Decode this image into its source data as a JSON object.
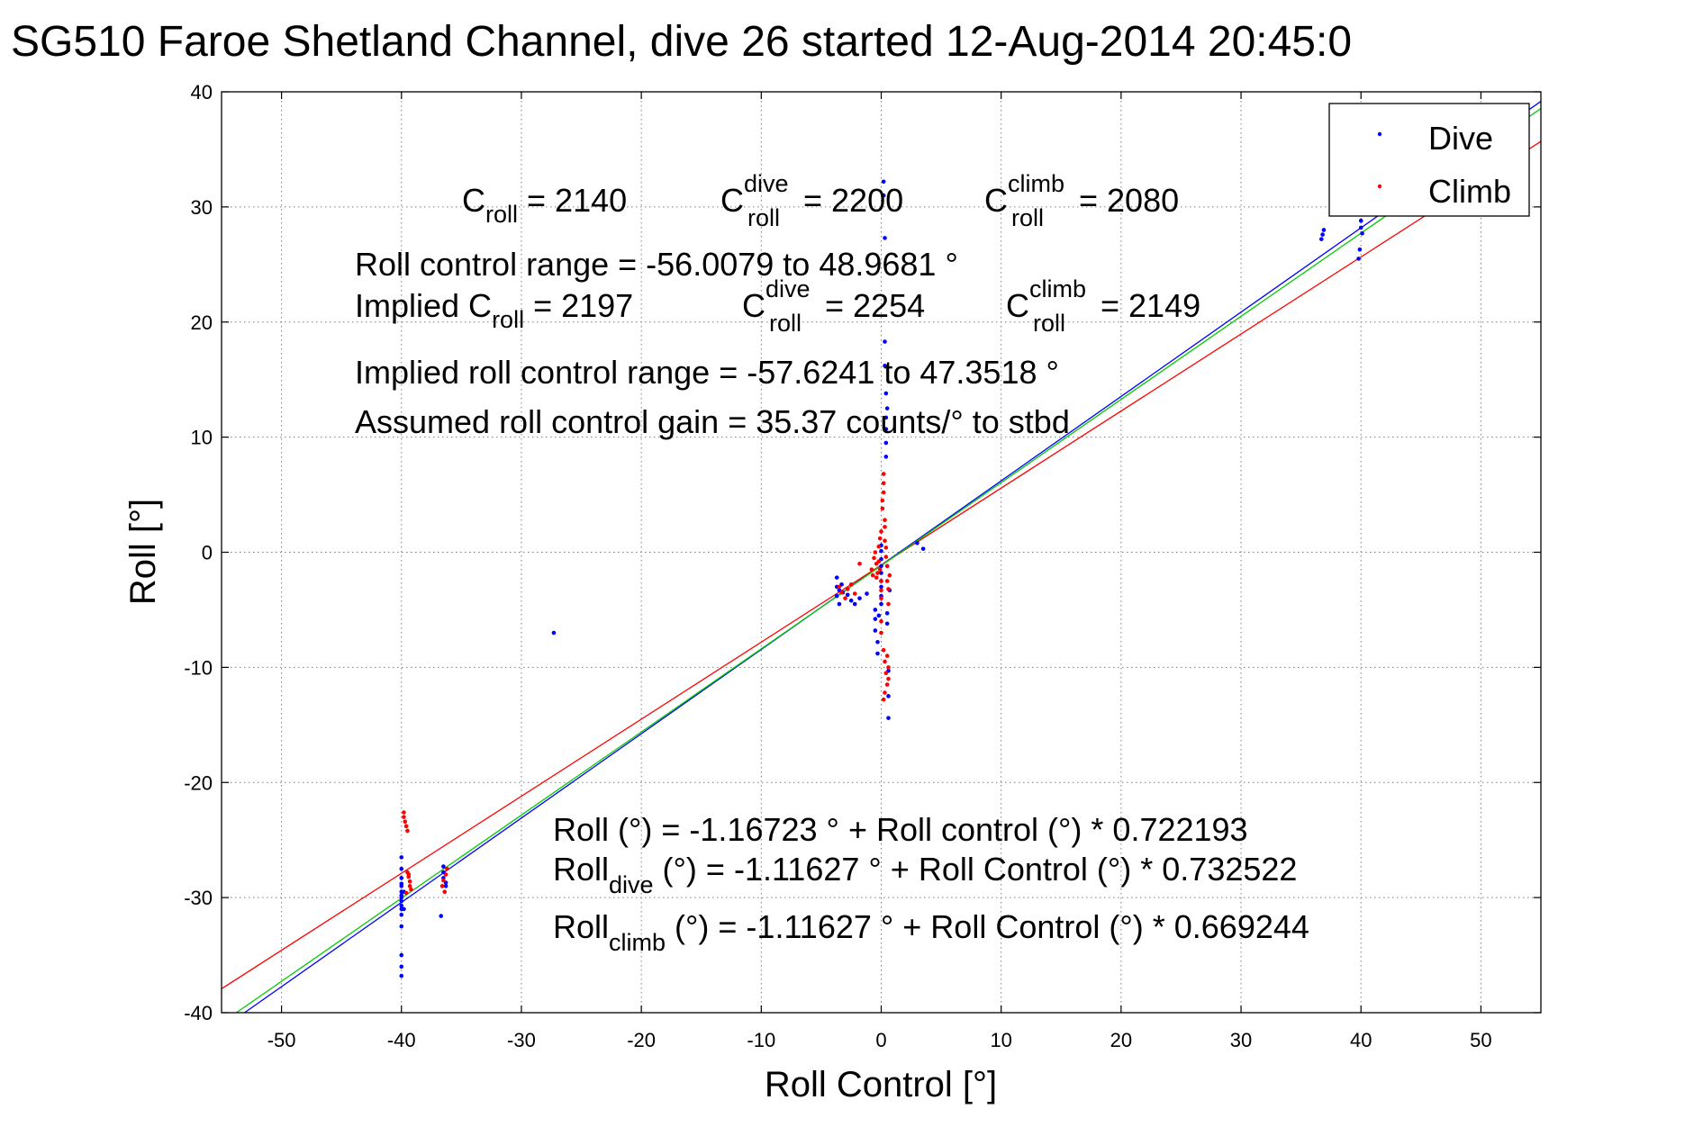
{
  "chart_data": {
    "type": "scatter",
    "title": "SG510 Faroe Shetland Channel, dive 26 started 12-Aug-2014 20:45:0",
    "xlabel": "Roll Control [°]",
    "ylabel": "Roll [°]",
    "xlim": [
      -55,
      55
    ],
    "ylim": [
      -40,
      40
    ],
    "xticks": [
      -50,
      -40,
      -30,
      -20,
      -10,
      0,
      10,
      20,
      30,
      40,
      50
    ],
    "yticks": [
      -40,
      -30,
      -20,
      -10,
      0,
      10,
      20,
      30,
      40
    ],
    "grid": true,
    "legend": {
      "placement": "top-right",
      "entries": [
        "Dive",
        "Climb"
      ]
    },
    "colors": {
      "dive": "#0000ff",
      "climb": "#ff0000",
      "fit_all": "#00cc00"
    },
    "series": [
      {
        "name": "Dive",
        "x": [
          -40,
          -40,
          -40,
          -40,
          -40,
          -40,
          -40,
          -40,
          -40,
          -40,
          -40,
          -40,
          -40,
          -40,
          -40,
          -40,
          -39.8,
          -39.8,
          -36.5,
          -36.5,
          -36.5,
          -36.3,
          -36.3,
          -36.7,
          -27.3,
          -3.7,
          -3.7,
          -3.7,
          -3.5,
          -3.5,
          -3.3,
          -3.2,
          -2.8,
          -2.5,
          -2.2,
          -1.8,
          -1.2,
          -0.5,
          -0.5,
          -0.5,
          -0.3,
          -0.3,
          -0.2,
          0,
          0,
          0,
          0,
          0,
          0,
          0,
          0,
          0,
          0.2,
          0.2,
          0.3,
          0.3,
          0.3,
          0.4,
          0.4,
          0.4,
          0.4,
          0.4,
          0.5,
          0.5,
          0.5,
          0.6,
          0.6,
          0.6,
          0.7,
          3.0,
          3.5,
          36.7,
          36.8,
          36.9,
          39.8,
          39.9,
          40,
          40,
          40.1,
          40.1,
          40.2,
          40.2
        ],
        "y": [
          -26.5,
          -27.5,
          -28.3,
          -29.0,
          -29.5,
          -30.0,
          -30.3,
          -30.7,
          -31.0,
          -31.5,
          -32.5,
          -35.0,
          -36.0,
          -36.8,
          -29.8,
          -28.8,
          -31.0,
          -29.5,
          -27.3,
          -27.8,
          -28.3,
          -28.7,
          -29.0,
          -31.6,
          -7.0,
          -2.2,
          -3.0,
          -3.8,
          -4.5,
          -3.3,
          -2.8,
          -3.5,
          -3.7,
          -4.2,
          -4.5,
          -4.0,
          -3.6,
          -5.0,
          -5.8,
          -6.8,
          -7.8,
          -8.8,
          -5.5,
          -2.5,
          -1.8,
          -1.2,
          -0.6,
          0.1,
          0.6,
          -3.0,
          -3.8,
          -4.5,
          32.2,
          31.0,
          27.3,
          18.3,
          16.2,
          13.8,
          11.7,
          10.7,
          9.5,
          8.3,
          12.5,
          -5.3,
          -6.2,
          -10.3,
          -12.5,
          -14.4,
          -3.3,
          0.8,
          0.3,
          27.2,
          27.6,
          28.0,
          25.5,
          26.3,
          28.2,
          28.8,
          27.7,
          29.5,
          30.1,
          31.0
        ]
      },
      {
        "name": "Climb",
        "x": [
          -39.8,
          -39.8,
          -39.7,
          -39.6,
          -39.5,
          -39.5,
          -39.4,
          -39.3,
          -39.3,
          -39.2,
          -39.6,
          -39.4,
          -36.2,
          -36.3,
          -36.5,
          -36.6,
          -36.4,
          -3.5,
          -3.3,
          -3.0,
          -2.8,
          -2.5,
          -2.2,
          -1.8,
          -0.8,
          -0.7,
          -0.6,
          -0.5,
          -0.4,
          -0.4,
          -0.3,
          -0.2,
          -0.2,
          -0.1,
          -0.1,
          0,
          0,
          0,
          0,
          0,
          0,
          0.1,
          0.1,
          0.2,
          0.2,
          0.2,
          0.3,
          0.3,
          0.3,
          0.4,
          0.4,
          0.5,
          0.5,
          0.6,
          0.6,
          0.7,
          0.2,
          0.3,
          0.4,
          0.5,
          0.3,
          0.2,
          0.5,
          0.6,
          0.6
        ],
        "y": [
          -22.6,
          -23.0,
          -23.4,
          -23.8,
          -24.2,
          -27.8,
          -28.2,
          -28.6,
          -29.0,
          -29.3,
          -29.6,
          -28.0,
          -27.5,
          -28.0,
          -28.5,
          -29.0,
          -29.5,
          -3.0,
          -3.5,
          -4.0,
          -3.2,
          -2.8,
          -3.6,
          -1.0,
          -1.5,
          -2.0,
          -0.5,
          0,
          -1.0,
          -2.2,
          -1.8,
          0.5,
          -0.8,
          -1.5,
          1.2,
          1.8,
          -2.5,
          -3.3,
          -4.0,
          -6.0,
          -7.0,
          3.8,
          4.5,
          5.2,
          6.0,
          6.8,
          2.8,
          2.2,
          1.0,
          0.4,
          -0.4,
          -1.2,
          -2.5,
          -3.2,
          -4.5,
          -2.0,
          -8.5,
          -9.5,
          -10.5,
          -11.5,
          -12.2,
          -12.8,
          -9.0,
          -10.0,
          -11.0
        ]
      }
    ],
    "fit_lines": [
      {
        "color": "#0000ff",
        "intercept": -1.11627,
        "slope": 0.732522
      },
      {
        "color": "#ff0000",
        "intercept": -1.11627,
        "slope": 0.669244
      },
      {
        "color": "#00cc00",
        "intercept": -1.16723,
        "slope": 0.722193
      }
    ],
    "annotations": {
      "c_roll": {
        "c": "C",
        "sub": "roll",
        "val": " = 2140"
      },
      "c_roll_dive": {
        "c": "C",
        "sup": "dive",
        "sub": "roll",
        "val": " = 2200"
      },
      "c_roll_climb": {
        "c": "C",
        "sup": "climb",
        "sub": "roll",
        "val": " = 2080"
      },
      "roll_control_range": "Roll control range = -56.0079 to 48.9681 °",
      "implied_c_roll": {
        "pre": "Implied C",
        "sub": "roll",
        "val": " = 2197"
      },
      "implied_c_roll_dive": {
        "c": "C",
        "sup": "dive",
        "sub": "roll",
        "val": " = 2254"
      },
      "implied_c_roll_climb": {
        "c": "C",
        "sup": "climb",
        "sub": "roll",
        "val": " = 2149"
      },
      "implied_range": "Implied roll control range = -57.6241 to 47.3518 °",
      "assumed_gain": "Assumed roll control gain = 35.37 counts/° to stbd",
      "eq_all": "Roll (°) = -1.16723 ° + Roll control (°) * 0.722193",
      "eq_dive": {
        "pre": "Roll",
        "sub": "dive",
        "post": " (°) = -1.11627 ° + Roll Control (°) * 0.732522"
      },
      "eq_climb": {
        "pre": "Roll",
        "sub": "climb",
        "post": " (°) = -1.11627 ° + Roll Control (°) * 0.669244"
      }
    }
  }
}
